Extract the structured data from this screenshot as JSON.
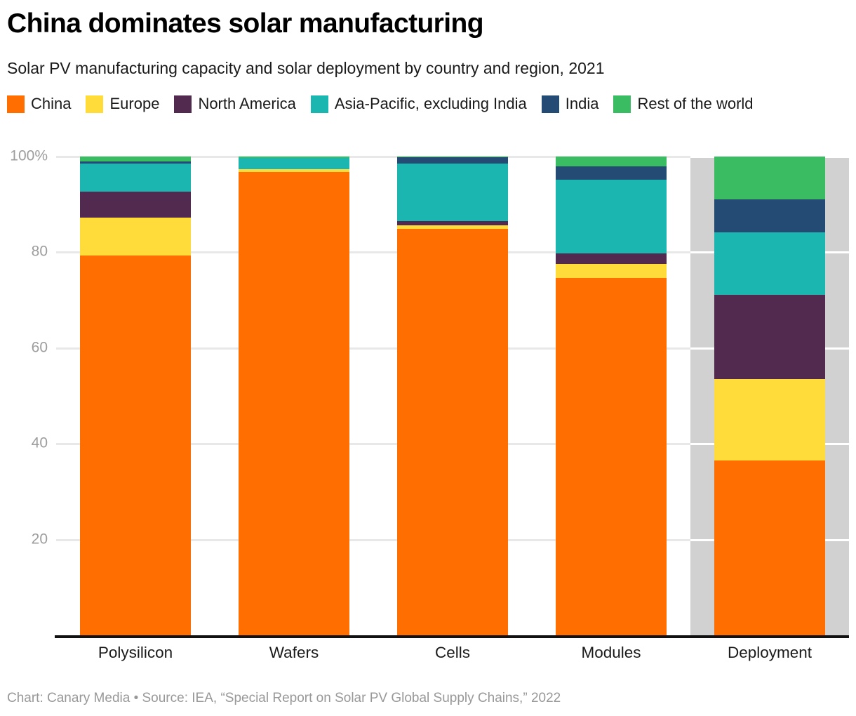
{
  "header": {
    "title": "China dominates solar manufacturing",
    "subtitle": "Solar PV manufacturing capacity and solar deployment by country and region, 2021"
  },
  "legend": {
    "items": [
      {
        "label": "China",
        "color": "#FF6E00"
      },
      {
        "label": "Europe",
        "color": "#FFDC3A"
      },
      {
        "label": "North America",
        "color": "#522A50"
      },
      {
        "label": "Asia-Pacific, excluding India",
        "color": "#1AB6AF"
      },
      {
        "label": "India",
        "color": "#234B73"
      },
      {
        "label": "Rest of the world",
        "color": "#3ABD62"
      }
    ]
  },
  "chart_data": {
    "type": "bar",
    "subtype": "stacked-percentage-column",
    "title": "China dominates solar manufacturing",
    "subtitle": "Solar PV manufacturing capacity and solar deployment by country and region, 2021",
    "categories": [
      "Polysilicon",
      "Wafers",
      "Cells",
      "Modules",
      "Deployment"
    ],
    "series": [
      {
        "name": "China",
        "color": "#FF6E00",
        "values": [
          79.4,
          96.8,
          84.9,
          74.7,
          36.5
        ]
      },
      {
        "name": "Europe",
        "color": "#FFDC3A",
        "values": [
          7.8,
          0.6,
          0.8,
          2.9,
          17.0
        ]
      },
      {
        "name": "North America",
        "color": "#522A50",
        "values": [
          5.5,
          0,
          0.8,
          2.2,
          17.6
        ]
      },
      {
        "name": "Asia-Pacific, excluding India",
        "color": "#1AB6AF",
        "values": [
          5.8,
          2.3,
          12.0,
          15.4,
          13.0
        ]
      },
      {
        "name": "India",
        "color": "#234B73",
        "values": [
          0.5,
          0,
          1.3,
          2.7,
          7.0
        ]
      },
      {
        "name": "Rest of the world",
        "color": "#3ABD62",
        "values": [
          1.0,
          0.3,
          0.2,
          2.1,
          8.9
        ]
      }
    ],
    "yticks": [
      {
        "label": "100%",
        "value": 100
      },
      {
        "label": "80",
        "value": 80
      },
      {
        "label": "60",
        "value": 60
      },
      {
        "label": "40",
        "value": 40
      },
      {
        "label": "20",
        "value": 20
      }
    ],
    "ylim": [
      0,
      100
    ],
    "grid": "horizontal",
    "legend_position": "top",
    "highlight_category": "Deployment",
    "highlight_bg": "#D1D1D1"
  },
  "footer": {
    "credit": "Chart: Canary Media • Source: IEA, “Special Report on Solar PV Global Supply Chains,” 2022"
  }
}
